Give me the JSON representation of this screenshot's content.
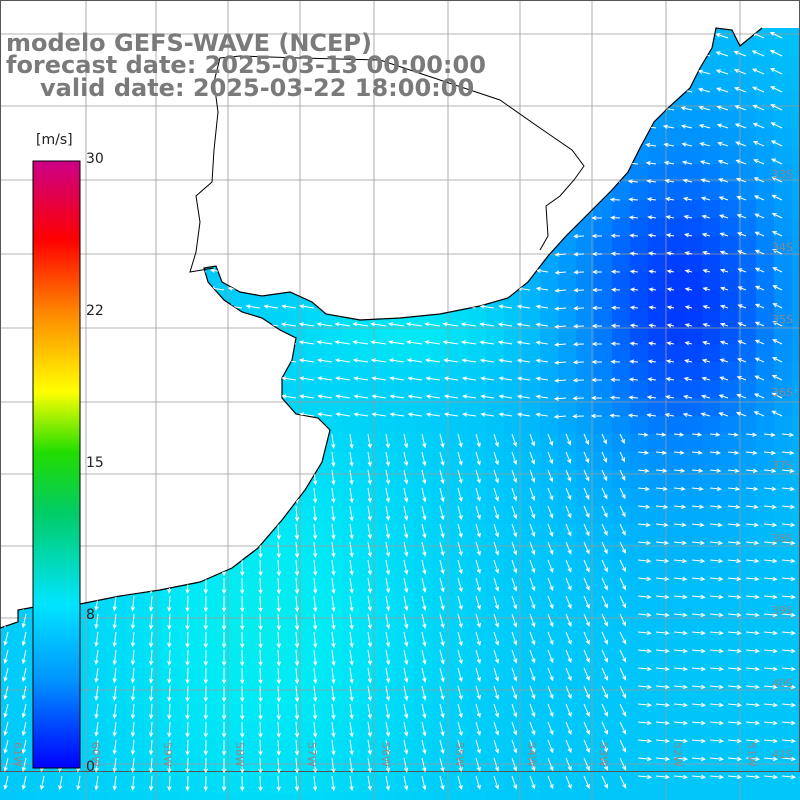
{
  "title": {
    "line1": "modelo GEFS-WAVE (NCEP)",
    "line2": "forecast date: 2025-03-13 00:00:00",
    "line3": "valid date: 2025-03-22 18:00:00"
  },
  "colorbar": {
    "unit": "[m/s]",
    "ticks": [
      "30",
      "22",
      "15",
      "8",
      "0"
    ],
    "range": [
      0,
      30
    ]
  },
  "colors": {
    "sea_low": "#0033ee",
    "sea_mid": "#1a9cf2",
    "sea_high": "#1ee3ef",
    "land": "#ffffff",
    "grid": "#9a9a9a",
    "coast": "#000000",
    "label": "#8a8a8a"
  },
  "lat_labels": [
    "33S",
    "34S",
    "35S",
    "36S",
    "37S",
    "38S",
    "39S",
    "40S",
    "41S"
  ],
  "lon_labels": [
    "61W",
    "60W",
    "59W",
    "58W",
    "57W",
    "56W",
    "55W",
    "54W",
    "53W",
    "52W",
    "51W"
  ],
  "map": {
    "region": "South Atlantic — Rio de la Plata",
    "field": "surface wind speed with direction arrows"
  }
}
